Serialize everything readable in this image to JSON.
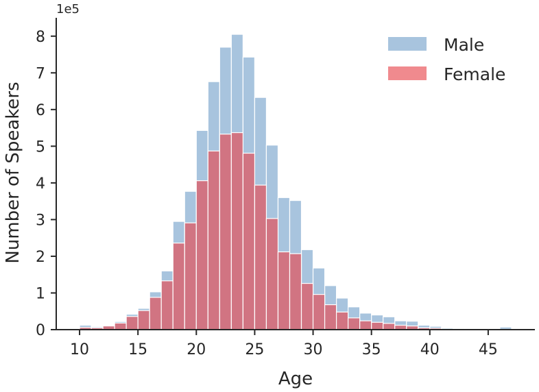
{
  "chart_data": {
    "type": "bar",
    "subtype": "overlaid-histogram",
    "xlabel": "Age",
    "ylabel": "Number of Speakers",
    "y_exponent_label": "1e5",
    "xlim": [
      8,
      49
    ],
    "ylim": [
      0,
      8.5
    ],
    "x_ticks": [
      "10",
      "15",
      "20",
      "25",
      "30",
      "35",
      "40",
      "45"
    ],
    "x_tick_values": [
      10,
      15,
      20,
      25,
      30,
      35,
      40,
      45
    ],
    "y_ticks": [
      "0",
      "1",
      "2",
      "3",
      "4",
      "5",
      "6",
      "7",
      "8"
    ],
    "y_tick_values": [
      0,
      1,
      2,
      3,
      4,
      5,
      6,
      7,
      8
    ],
    "bin_width": 1,
    "bin_starts": [
      10,
      11,
      12,
      13,
      14,
      15,
      16,
      17,
      18,
      19,
      20,
      21,
      22,
      23,
      24,
      25,
      26,
      27,
      28,
      29,
      30,
      31,
      32,
      33,
      34,
      35,
      36,
      37,
      38,
      39,
      40,
      41,
      42,
      43,
      44,
      45,
      46
    ],
    "grid": false,
    "legend_position": "top-right",
    "colors": {
      "male": "#a8c4de",
      "female": "#f08a8e",
      "overlap": "#d17482",
      "edge": "#ffffff",
      "axis": "#262626"
    },
    "series": [
      {
        "name": "Male",
        "values": [
          0.12,
          0.08,
          0.12,
          0.22,
          0.42,
          0.58,
          1.03,
          1.6,
          2.95,
          3.77,
          5.43,
          6.76,
          7.7,
          8.05,
          7.43,
          6.33,
          5.03,
          3.6,
          3.52,
          2.18,
          1.68,
          1.2,
          0.86,
          0.62,
          0.45,
          0.4,
          0.35,
          0.24,
          0.23,
          0.12,
          0.09,
          0.05,
          0.04,
          0.03,
          0.02,
          0.02,
          0.07
        ]
      },
      {
        "name": "Female",
        "values": [
          0.06,
          0.05,
          0.1,
          0.18,
          0.36,
          0.52,
          0.88,
          1.33,
          2.36,
          2.91,
          4.06,
          4.87,
          5.33,
          5.37,
          4.81,
          3.94,
          3.03,
          2.12,
          2.07,
          1.26,
          0.96,
          0.68,
          0.48,
          0.32,
          0.24,
          0.2,
          0.17,
          0.12,
          0.1,
          0.05,
          0.04,
          0.02,
          0.02,
          0.01,
          0.01,
          0.01,
          0.01
        ]
      }
    ]
  }
}
